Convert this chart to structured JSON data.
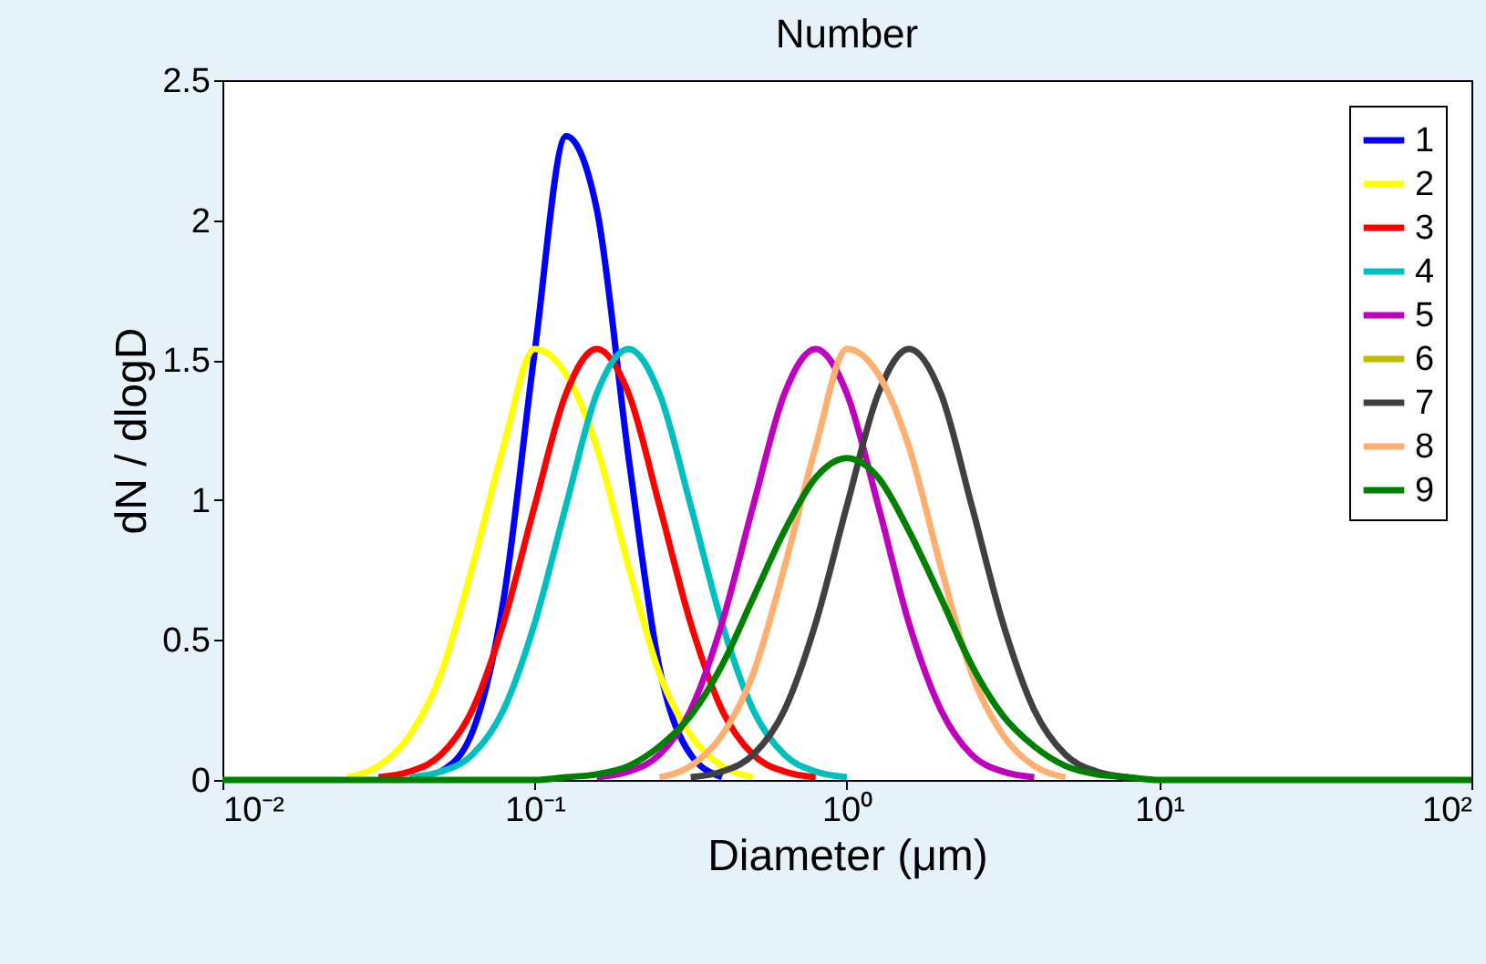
{
  "chart_data": {
    "type": "line",
    "title": "Number",
    "xlabel": "Diameter (μm)",
    "ylabel": "dN / dlogD",
    "log": "x",
    "grid": false,
    "legend": "top right",
    "marker": "none",
    "line_style": "solid",
    "xlim": [
      0.01,
      100
    ],
    "xticks": [
      {
        "value": 0.01,
        "label": "10⁻²"
      },
      {
        "value": 0.1,
        "label": "10⁻¹"
      },
      {
        "value": 1,
        "label": "10⁰"
      },
      {
        "value": 10,
        "label": "10¹"
      },
      {
        "value": 100,
        "label": "10²"
      }
    ],
    "ylim": [
      0,
      2.5
    ],
    "yticks": [
      0,
      0.5,
      1,
      1.5,
      2,
      2.5
    ],
    "x": [
      0.01,
      0.0126,
      0.0158,
      0.02,
      0.0251,
      0.0316,
      0.0398,
      0.0501,
      0.0631,
      0.0794,
      0.1,
      0.126,
      0.158,
      0.2,
      0.251,
      0.316,
      0.398,
      0.501,
      0.631,
      0.794,
      1,
      1.26,
      1.58,
      2,
      2.51,
      3.16,
      3.98,
      5.01,
      6.31,
      7.94,
      10,
      12.6,
      15.8,
      20,
      25.1,
      31.6,
      39.8,
      50.1,
      63.1,
      79.4,
      100
    ],
    "series": [
      {
        "name": "1",
        "color": "#0000ff",
        "values": [
          null,
          null,
          null,
          null,
          null,
          null,
          null,
          0.03,
          0.17,
          0.64,
          1.53,
          2.3,
          2.04,
          1.15,
          0.4,
          0.09,
          0.01,
          null,
          null,
          null,
          null,
          null,
          null,
          null,
          null,
          null,
          null,
          null,
          null,
          null,
          null,
          null,
          null,
          null,
          null,
          null,
          null,
          null,
          null,
          null,
          null
        ]
      },
      {
        "name": "2",
        "color": "#ffff00",
        "values": [
          null,
          null,
          null,
          null,
          0.01,
          0.05,
          0.16,
          0.38,
          0.76,
          1.19,
          1.54,
          1.45,
          1.19,
          0.76,
          0.38,
          0.16,
          0.05,
          0.01,
          null,
          null,
          null,
          null,
          null,
          null,
          null,
          null,
          null,
          null,
          null,
          null,
          null,
          null,
          null,
          null,
          null,
          null,
          null,
          null,
          null,
          null,
          null
        ]
      },
      {
        "name": "3",
        "color": "#ff0000",
        "values": [
          null,
          null,
          null,
          null,
          null,
          0.01,
          0.03,
          0.09,
          0.25,
          0.56,
          0.98,
          1.38,
          1.54,
          1.38,
          0.98,
          0.56,
          0.25,
          0.09,
          0.03,
          0.01,
          null,
          null,
          null,
          null,
          null,
          null,
          null,
          null,
          null,
          null,
          null,
          null,
          null,
          null,
          null,
          null,
          null,
          null,
          null,
          null,
          null
        ]
      },
      {
        "name": "4",
        "color": "#00bfbf",
        "values": [
          null,
          null,
          null,
          null,
          null,
          null,
          0.01,
          0.03,
          0.09,
          0.25,
          0.56,
          0.98,
          1.38,
          1.54,
          1.38,
          0.98,
          0.56,
          0.25,
          0.09,
          0.03,
          0.01,
          null,
          null,
          null,
          null,
          null,
          null,
          null,
          null,
          null,
          null,
          null,
          null,
          null,
          null,
          null,
          null,
          null,
          null,
          null,
          null
        ]
      },
      {
        "name": "5",
        "color": "#bf00bf",
        "values": [
          null,
          null,
          null,
          null,
          null,
          null,
          null,
          null,
          null,
          null,
          null,
          null,
          0.01,
          0.03,
          0.09,
          0.25,
          0.56,
          0.98,
          1.38,
          1.54,
          1.38,
          0.98,
          0.56,
          0.25,
          0.09,
          0.03,
          0.01,
          null,
          null,
          null,
          null,
          null,
          null,
          null,
          null,
          null,
          null,
          null,
          null,
          null,
          null
        ]
      },
      {
        "name": "6",
        "color": "#bfbf00",
        "values": [
          null,
          null,
          null,
          null,
          null,
          null,
          null,
          null,
          null,
          null,
          null,
          null,
          null,
          null,
          null,
          null,
          null,
          null,
          null,
          null,
          null,
          null,
          null,
          null,
          null,
          null,
          null,
          null,
          null,
          null,
          null,
          null,
          null,
          null,
          null,
          null,
          null,
          null,
          null,
          null,
          null
        ]
      },
      {
        "name": "7",
        "color": "#404040",
        "values": [
          null,
          null,
          null,
          null,
          null,
          null,
          null,
          null,
          null,
          null,
          null,
          null,
          null,
          null,
          null,
          0.01,
          0.03,
          0.09,
          0.25,
          0.56,
          0.98,
          1.38,
          1.54,
          1.38,
          0.98,
          0.56,
          0.25,
          0.09,
          0.03,
          0.01,
          null,
          null,
          null,
          null,
          null,
          null,
          null,
          null,
          null,
          null,
          null
        ]
      },
      {
        "name": "8",
        "color": "#ffb070",
        "values": [
          null,
          null,
          null,
          null,
          null,
          null,
          null,
          null,
          null,
          null,
          null,
          null,
          null,
          null,
          0.01,
          0.05,
          0.16,
          0.38,
          0.76,
          1.19,
          1.54,
          1.45,
          1.19,
          0.76,
          0.38,
          0.16,
          0.05,
          0.01,
          null,
          null,
          null,
          null,
          null,
          null,
          null,
          null,
          null,
          null,
          null,
          null,
          null
        ]
      },
      {
        "name": "9",
        "color": "#008000",
        "values": [
          0,
          0,
          0,
          0,
          0,
          0,
          0,
          0,
          0,
          0,
          0,
          0.01,
          0.02,
          0.05,
          0.12,
          0.23,
          0.41,
          0.65,
          0.89,
          1.08,
          1.15,
          1.08,
          0.89,
          0.65,
          0.41,
          0.23,
          0.12,
          0.05,
          0.02,
          0.01,
          0,
          0,
          0,
          0,
          0,
          0,
          0,
          0,
          0,
          0,
          0
        ]
      }
    ]
  }
}
